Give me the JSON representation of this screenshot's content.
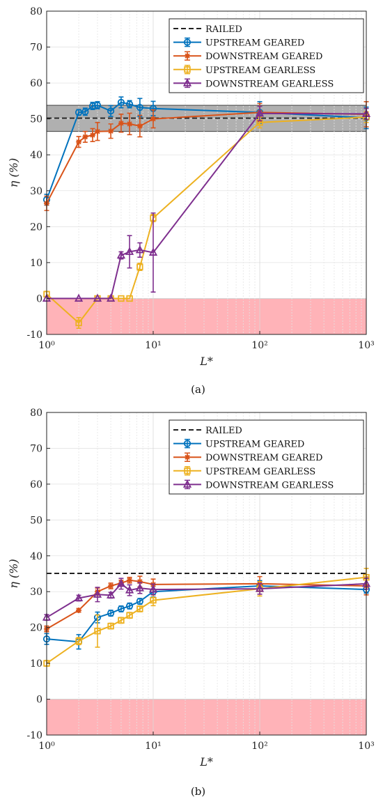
{
  "colors": {
    "railed": "#222222",
    "upstream_geared": "#0072bd",
    "downstream_geared": "#d95319",
    "upstream_gearless": "#edb120",
    "downstream_gearless": "#7e2f8e",
    "band_gray": "#b0b0b0",
    "negative_region": "#ffb3b8"
  },
  "chart_data": [
    {
      "type": "line",
      "panel_label": "(a)",
      "xlabel": "L*",
      "ylabel": "η (%)",
      "xscale": "log",
      "xlim": [
        1,
        1000
      ],
      "ylim": [
        -10,
        80
      ],
      "yticks": [
        -10,
        0,
        10,
        20,
        30,
        40,
        50,
        60,
        70,
        80
      ],
      "xtick_labels": [
        "10⁰",
        "10¹",
        "10²",
        "10³"
      ],
      "grid": true,
      "legend": [
        "RAILED",
        "UPSTREAM GEARED",
        "DOWNSTREAM GEARED",
        "UPSTREAM GEARLESS",
        "DOWNSTREAM GEARLESS"
      ],
      "legend_position": "top-right",
      "railed": {
        "name": "RAILED",
        "value": 50.2,
        "band": [
          46.5,
          53.8
        ]
      },
      "negative_region": [
        -10,
        0
      ],
      "series": [
        {
          "name": "UPSTREAM GEARED",
          "marker": "circle",
          "x": [
            1,
            2,
            2.3,
            2.7,
            3,
            4,
            5,
            6,
            7.5,
            10,
            100,
            1000
          ],
          "y": [
            27.5,
            51.8,
            52.0,
            53.6,
            53.8,
            52.2,
            54.6,
            54.1,
            53.2,
            52.9,
            51.8,
            50.3
          ],
          "err": [
            1.5,
            0.8,
            1.0,
            1.0,
            1.0,
            1.5,
            1.5,
            1.0,
            2.5,
            2.0,
            3.0,
            3.0
          ]
        },
        {
          "name": "DOWNSTREAM GEARED",
          "marker": "asterisk",
          "x": [
            1,
            2,
            2.3,
            2.7,
            3,
            4,
            5,
            6,
            7.5,
            10,
            100,
            1000
          ],
          "y": [
            26.5,
            43.6,
            45.0,
            45.5,
            46.5,
            46.6,
            48.8,
            48.6,
            48.0,
            50.0,
            51.8,
            51.3
          ],
          "err": [
            2.0,
            1.5,
            1.5,
            1.8,
            2.5,
            2.0,
            2.5,
            3.0,
            3.0,
            2.5,
            2.5,
            3.5
          ]
        },
        {
          "name": "UPSTREAM GEARLESS",
          "marker": "square",
          "x": [
            1,
            2,
            3,
            4,
            5,
            6,
            7.5,
            10,
            100,
            1000
          ],
          "y": [
            1.2,
            -6.8,
            0,
            0,
            0,
            0,
            8.8,
            22.4,
            49.0,
            50.5
          ],
          "err": [
            0.8,
            1.5,
            0,
            0,
            0,
            0,
            1.0,
            1.0,
            1.5,
            1.5
          ]
        },
        {
          "name": "DOWNSTREAM GEARLESS",
          "marker": "triangle",
          "x": [
            1,
            2,
            3,
            4,
            5,
            6,
            7.5,
            10,
            100,
            1000
          ],
          "y": [
            0,
            0,
            0,
            0,
            12.0,
            13.0,
            13.5,
            12.8,
            51.5,
            51.4
          ],
          "err": [
            0,
            0,
            0,
            0,
            1.0,
            4.5,
            2.0,
            11.0,
            2.0,
            1.5
          ]
        }
      ]
    },
    {
      "type": "line",
      "panel_label": "(b)",
      "xlabel": "L*",
      "ylabel": "η (%)",
      "xscale": "log",
      "xlim": [
        1,
        1000
      ],
      "ylim": [
        -10,
        80
      ],
      "yticks": [
        -10,
        0,
        10,
        20,
        30,
        40,
        50,
        60,
        70,
        80
      ],
      "xtick_labels": [
        "10⁰",
        "10¹",
        "10²",
        "10³"
      ],
      "grid": true,
      "legend": [
        "RAILED",
        "UPSTREAM GEARED",
        "DOWNSTREAM GEARED",
        "UPSTREAM GEARLESS",
        "DOWNSTREAM GEARLESS"
      ],
      "legend_position": "top-right",
      "railed": {
        "name": "RAILED",
        "value": 35.1,
        "band": null
      },
      "negative_region": [
        -10,
        0
      ],
      "series": [
        {
          "name": "UPSTREAM GEARED",
          "marker": "circle",
          "x": [
            1,
            2,
            3,
            4,
            5,
            6,
            7.5,
            10,
            100,
            1000
          ],
          "y": [
            16.8,
            16.0,
            22.8,
            24.0,
            25.2,
            26.0,
            27.3,
            30.0,
            31.6,
            30.6
          ],
          "err": [
            1.5,
            2.0,
            1.5,
            0.8,
            0.8,
            0.8,
            0.8,
            1.5,
            1.5,
            1.0
          ]
        },
        {
          "name": "DOWNSTREAM GEARED",
          "marker": "asterisk",
          "x": [
            1,
            2,
            3,
            4,
            5,
            6,
            7.5,
            10,
            100,
            1000
          ],
          "y": [
            19.6,
            24.8,
            30.0,
            31.6,
            32.4,
            33.2,
            32.8,
            32.0,
            32.2,
            31.6
          ],
          "err": [
            0.8,
            0.5,
            1.0,
            0.8,
            0.8,
            0.8,
            1.5,
            1.5,
            2.0,
            2.5
          ]
        },
        {
          "name": "UPSTREAM GEARLESS",
          "marker": "square",
          "x": [
            1,
            2,
            3,
            4,
            5,
            6,
            7.5,
            10,
            100,
            1000
          ],
          "y": [
            10.0,
            16.2,
            19.0,
            20.4,
            22.0,
            23.4,
            25.2,
            27.6,
            30.8,
            34.0
          ],
          "err": [
            0.8,
            1.0,
            4.5,
            0.8,
            0.8,
            0.8,
            0.8,
            1.5,
            2.0,
            2.5
          ]
        },
        {
          "name": "DOWNSTREAM GEARLESS",
          "marker": "triangle",
          "x": [
            1,
            2,
            3,
            4,
            5,
            6,
            7.5,
            10,
            100,
            1000
          ],
          "y": [
            22.8,
            28.2,
            29.2,
            29.0,
            32.2,
            30.4,
            31.0,
            30.6,
            30.8,
            32.2
          ],
          "err": [
            0.8,
            0.8,
            2.0,
            0.8,
            1.5,
            1.5,
            1.5,
            1.5,
            1.5,
            1.5
          ]
        }
      ]
    }
  ]
}
